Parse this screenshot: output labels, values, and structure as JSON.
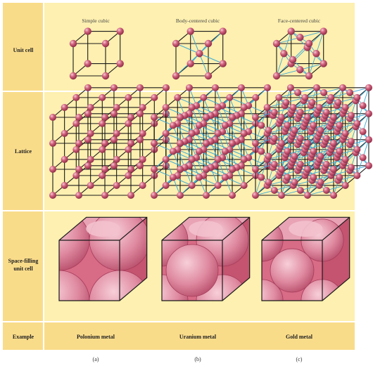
{
  "columns": [
    {
      "title": "Simple cubic",
      "example": "Polonium metal",
      "panel": "(a)"
    },
    {
      "title": "Body-centered cubic",
      "example": "Uranium metal",
      "panel": "(b)"
    },
    {
      "title": "Face-centered cubic",
      "example": "Gold metal",
      "panel": "(c)"
    }
  ],
  "rows": [
    {
      "label_lines": [
        "Unit cell"
      ]
    },
    {
      "label_lines": [
        "Lattice"
      ]
    },
    {
      "label_lines": [
        "Space-filling",
        "unit cell"
      ]
    },
    {
      "label_lines": [
        "Example"
      ]
    }
  ],
  "colors": {
    "background_panel": "#fdf0b0",
    "label_column": "#f9dc8a",
    "example_band": "#f9dc8a",
    "divider": "#ffffff",
    "atom": "#c8506e",
    "atom_highlight": "#f2b6c6",
    "edge": "#1a1a1a",
    "bond": "#3aa9d6",
    "cube_front": "#d86b86",
    "cube_top": "#e8a3b4",
    "cube_side": "#c4546f"
  }
}
